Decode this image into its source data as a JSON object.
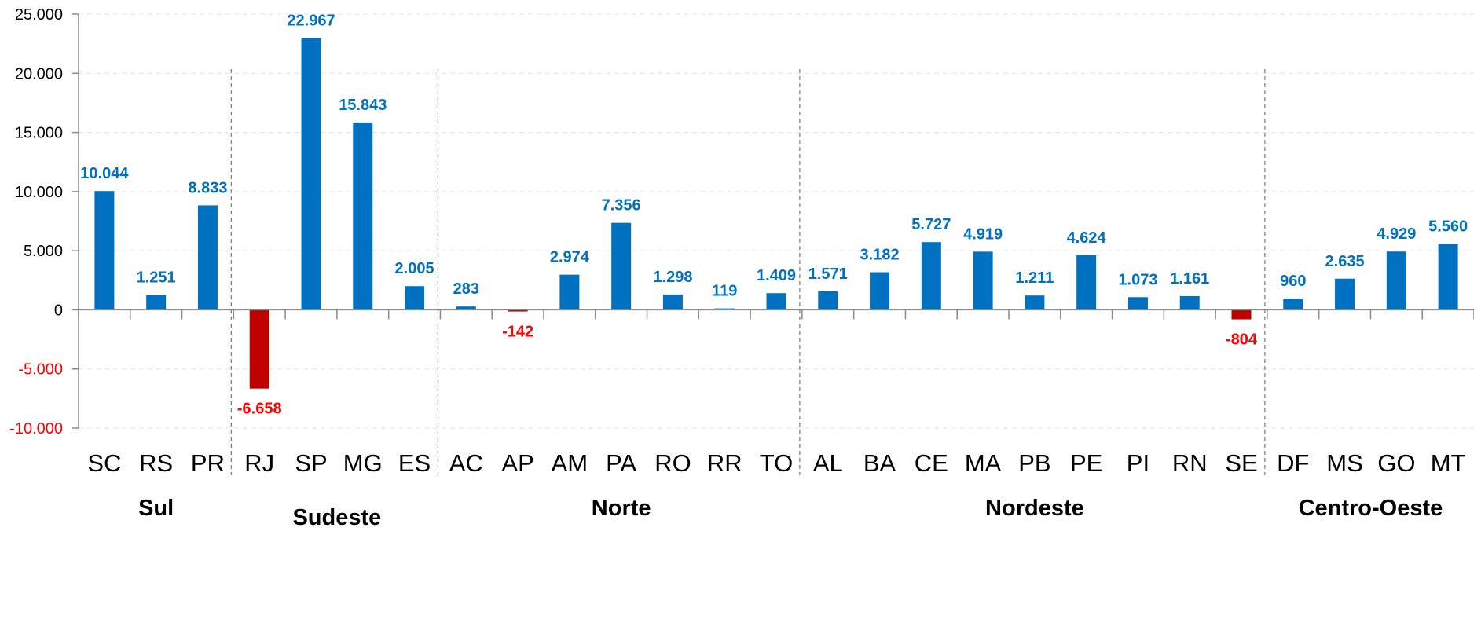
{
  "chart_data": {
    "type": "bar",
    "categories": [
      "SC",
      "RS",
      "PR",
      "RJ",
      "SP",
      "MG",
      "ES",
      "AC",
      "AP",
      "AM",
      "PA",
      "RO",
      "RR",
      "TO",
      "AL",
      "BA",
      "CE",
      "MA",
      "PB",
      "PE",
      "PI",
      "RN",
      "SE",
      "DF",
      "MS",
      "GO",
      "MT"
    ],
    "values": [
      10044,
      1251,
      8833,
      -6658,
      22967,
      15843,
      2005,
      283,
      -142,
      2974,
      7356,
      1298,
      119,
      1409,
      1571,
      3182,
      5727,
      4919,
      1211,
      4624,
      1073,
      1161,
      -804,
      960,
      2635,
      4929,
      5560
    ],
    "value_labels": [
      "10.044",
      "1.251",
      "8.833",
      "-6.658",
      "22.967",
      "15.843",
      "2.005",
      "283",
      "-142",
      "2.974",
      "7.356",
      "1.298",
      "119",
      "1.409",
      "1.571",
      "3.182",
      "5.727",
      "4.919",
      "1.211",
      "4.624",
      "1.073",
      "1.161",
      "-804",
      "960",
      "2.635",
      "4.929",
      "5.560"
    ],
    "ylim": [
      -10000,
      25000
    ],
    "yticks": [
      25000,
      20000,
      15000,
      10000,
      5000,
      0,
      -5000,
      -10000
    ],
    "ytick_labels": [
      "25.000",
      "20.000",
      "15.000",
      "10.000",
      "5.000",
      "0",
      "-5.000",
      "-10.000"
    ],
    "groups": [
      {
        "name": "Sul",
        "count": 3
      },
      {
        "name": "Sudeste",
        "count": 4
      },
      {
        "name": "Norte",
        "count": 7
      },
      {
        "name": "Nordeste",
        "count": 9
      },
      {
        "name": "Centro-Oeste",
        "count": 4
      }
    ],
    "grid": true,
    "colors": {
      "positive": "#0070C0",
      "negative": "#C00000",
      "positive_label": "#0070C0",
      "negative_label": "#FF0000",
      "negative_tick": "#FF0000"
    }
  }
}
